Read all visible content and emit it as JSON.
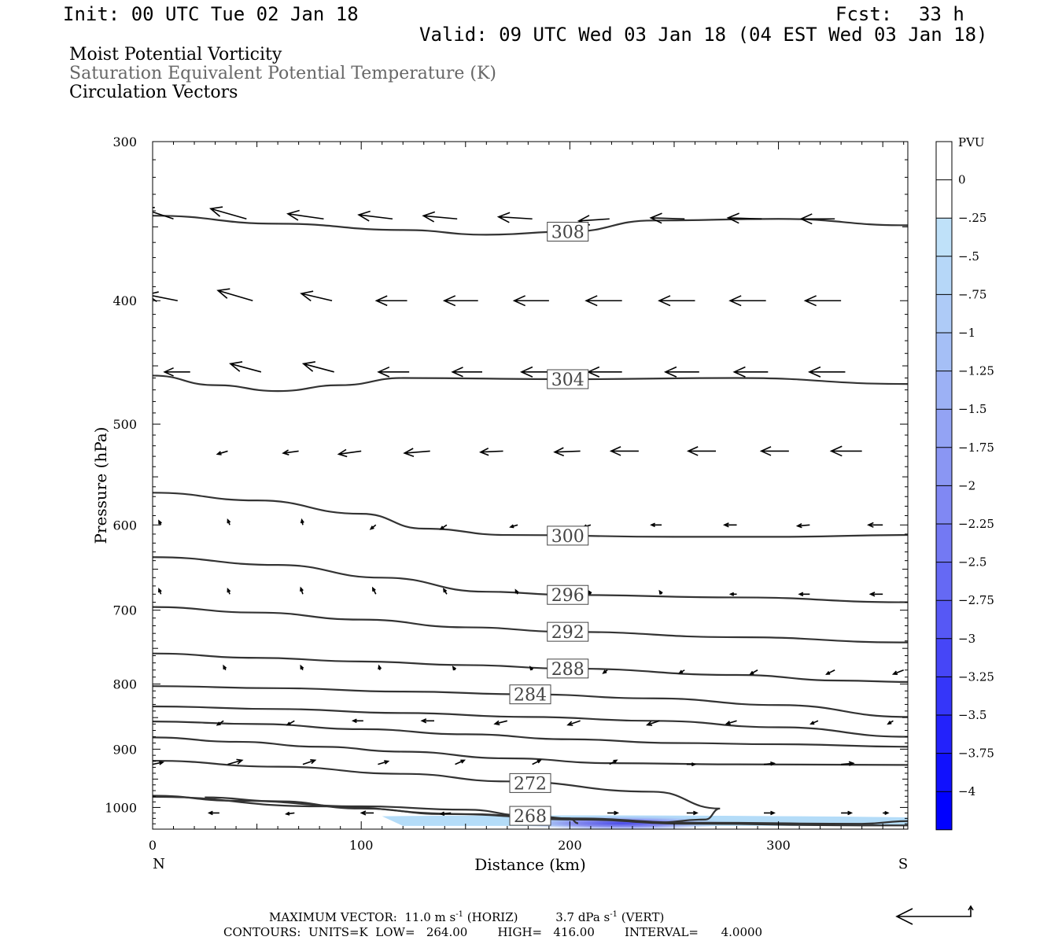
{
  "header": {
    "init": "Init: 00 UTC Tue 02 Jan 18",
    "fcst_label": "Fcst:",
    "fcst_value": "33 h",
    "valid": "Valid: 09 UTC Wed 03 Jan 18 (04 EST Wed 03 Jan 18)"
  },
  "titles": [
    "Moist Potential Vorticity",
    "Saturation Equivalent Potential Temperature (K)",
    "Circulation Vectors"
  ],
  "colors": {
    "contour": "#333333",
    "title2": "#666666",
    "pv_light": "#b4dcf8",
    "pv_dark": "#0000ff"
  },
  "chart_data": {
    "type": "cross-section",
    "xlabel": "Distance (km)",
    "ylabel": "Pressure (hPa)",
    "x_range": [
      0,
      362
    ],
    "y_range_hPa": [
      300,
      1040
    ],
    "y_log_scale": true,
    "x_ticks": [
      0,
      100,
      200,
      300
    ],
    "y_ticks": [
      300,
      400,
      500,
      600,
      700,
      800,
      900,
      1000
    ],
    "end_labels": {
      "left": "N",
      "right": "S"
    },
    "contours_theta_es": [
      {
        "label": "308",
        "label_x": 199,
        "points": [
          [
            0,
            343
          ],
          [
            60,
            348
          ],
          [
            120,
            352
          ],
          [
            160,
            355
          ],
          [
            200,
            353
          ],
          [
            240,
            346
          ],
          [
            300,
            345
          ],
          [
            362,
            349
          ]
        ]
      },
      {
        "label": "304",
        "label_x": 199,
        "points": [
          [
            0,
            458
          ],
          [
            30,
            466
          ],
          [
            60,
            471
          ],
          [
            90,
            466
          ],
          [
            120,
            460
          ],
          [
            200,
            461
          ],
          [
            280,
            460
          ],
          [
            362,
            465
          ]
        ]
      },
      {
        "label": "300",
        "label_x": 199,
        "points": [
          [
            0,
            566
          ],
          [
            50,
            574
          ],
          [
            100,
            588
          ],
          [
            130,
            604
          ],
          [
            170,
            611
          ],
          [
            250,
            613
          ],
          [
            300,
            613
          ],
          [
            362,
            611
          ]
        ]
      },
      {
        "label": "296",
        "label_x": 199,
        "points": [
          [
            0,
            636
          ],
          [
            60,
            645
          ],
          [
            110,
            660
          ],
          [
            160,
            677
          ],
          [
            200,
            681
          ],
          [
            280,
            684
          ],
          [
            362,
            690
          ]
        ]
      },
      {
        "label": "292",
        "label_x": 199,
        "points": [
          [
            0,
            696
          ],
          [
            50,
            703
          ],
          [
            100,
            712
          ],
          [
            150,
            722
          ],
          [
            200,
            728
          ],
          [
            280,
            735
          ],
          [
            362,
            742
          ]
        ]
      },
      {
        "label": "288",
        "label_x": 199,
        "points": [
          [
            0,
            757
          ],
          [
            50,
            763
          ],
          [
            100,
            768
          ],
          [
            150,
            773
          ],
          [
            200,
            778
          ],
          [
            280,
            787
          ],
          [
            330,
            795
          ],
          [
            362,
            797
          ]
        ]
      },
      {
        "label": "284",
        "label_x": 181,
        "points": [
          [
            0,
            803
          ],
          [
            60,
            806
          ],
          [
            120,
            811
          ],
          [
            180,
            815
          ],
          [
            240,
            821
          ],
          [
            300,
            831
          ],
          [
            362,
            849
          ]
        ]
      },
      {
        "label": "",
        "label_x": 0,
        "points": [
          [
            0,
            833
          ],
          [
            60,
            837
          ],
          [
            120,
            843
          ],
          [
            180,
            849
          ],
          [
            240,
            855
          ],
          [
            300,
            865
          ],
          [
            362,
            880
          ]
        ]
      },
      {
        "label": "",
        "label_x": 0,
        "points": [
          [
            0,
            856
          ],
          [
            50,
            860
          ],
          [
            100,
            868
          ],
          [
            150,
            876
          ],
          [
            200,
            884
          ],
          [
            250,
            890
          ],
          [
            300,
            892
          ],
          [
            362,
            896
          ]
        ]
      },
      {
        "label": "",
        "label_x": 0,
        "points": [
          [
            0,
            881
          ],
          [
            40,
            888
          ],
          [
            80,
            896
          ],
          [
            120,
            904
          ],
          [
            170,
            915
          ],
          [
            220,
            923
          ],
          [
            280,
            925
          ],
          [
            362,
            926
          ]
        ]
      },
      {
        "label": "272",
        "label_x": 181,
        "points": [
          [
            0,
            919
          ],
          [
            60,
            929
          ],
          [
            120,
            941
          ],
          [
            170,
            954
          ],
          [
            240,
            972
          ],
          [
            272,
            1002
          ],
          [
            265,
            1022
          ],
          [
            240,
            1028
          ]
        ]
      },
      {
        "label": "268",
        "label_x": 181,
        "points": [
          [
            0,
            979
          ],
          [
            40,
            988
          ],
          [
            100,
            998
          ],
          [
            150,
            1004
          ],
          [
            180,
            1015
          ],
          [
            200,
            1020
          ],
          [
            204,
            1029
          ]
        ]
      },
      {
        "label": "",
        "label_x": 0,
        "points": [
          [
            0,
            981
          ],
          [
            80,
            998
          ],
          [
            150,
            1012
          ],
          [
            200,
            1022
          ],
          [
            260,
            1030
          ],
          [
            340,
            1033
          ],
          [
            362,
            1033
          ]
        ]
      },
      {
        "label": "",
        "label_x": 0,
        "points": [
          [
            25,
            982
          ],
          [
            60,
            989
          ],
          [
            100,
            1002
          ],
          [
            140,
            1012
          ],
          [
            200,
            1020
          ],
          [
            260,
            1028
          ],
          [
            340,
            1030
          ],
          [
            362,
            1025
          ]
        ]
      }
    ],
    "vectors": [
      {
        "p": 345,
        "xs": [
          10,
          45,
          82,
          115,
          146,
          182,
          219,
          255,
          292,
          327
        ],
        "u": [
          [
            -30,
            -10
          ],
          [
            -35,
            -10
          ],
          [
            -35,
            -5
          ],
          [
            -33,
            -4
          ],
          [
            -33,
            -3
          ],
          [
            -33,
            -2
          ],
          [
            -30,
            2
          ],
          [
            -33,
            -1
          ],
          [
            -33,
            -1
          ],
          [
            -33,
            0
          ]
        ]
      },
      {
        "p": 400,
        "xs": [
          12,
          48,
          86,
          122,
          156,
          190,
          225,
          260,
          294,
          330
        ],
        "u": [
          [
            -30,
            -6
          ],
          [
            -34,
            -10
          ],
          [
            -30,
            -7
          ],
          [
            -30,
            0
          ],
          [
            -33,
            0
          ],
          [
            -34,
            0
          ],
          [
            -35,
            0
          ],
          [
            -35,
            0
          ],
          [
            -35,
            0
          ],
          [
            -35,
            0
          ]
        ]
      },
      {
        "p": 455,
        "xs": [
          18,
          52,
          87,
          123,
          158,
          193,
          225,
          262,
          295,
          332
        ],
        "u": [
          [
            -25,
            0
          ],
          [
            -30,
            -8
          ],
          [
            -30,
            -8
          ],
          [
            -30,
            0
          ],
          [
            -29,
            0
          ],
          [
            -33,
            0
          ],
          [
            -33,
            0
          ],
          [
            -33,
            0
          ],
          [
            -33,
            0
          ],
          [
            -35,
            0
          ]
        ]
      },
      {
        "p": 525,
        "xs": [
          36,
          70,
          100,
          133,
          168,
          205,
          233,
          270,
          305,
          340
        ],
        "u": [
          [
            -10,
            3
          ],
          [
            -15,
            2
          ],
          [
            -22,
            3
          ],
          [
            -25,
            2
          ],
          [
            -22,
            1
          ],
          [
            -25,
            1
          ],
          [
            -27,
            0
          ],
          [
            -27,
            0
          ],
          [
            -27,
            0
          ],
          [
            -30,
            0
          ]
        ]
      },
      {
        "p": 600,
        "xs": [
          4,
          37,
          72,
          107,
          141,
          175,
          210,
          244,
          280,
          315,
          350
        ],
        "u": [
          [
            -2,
            -4
          ],
          [
            -2,
            -5
          ],
          [
            -1,
            -5
          ],
          [
            -5,
            4
          ],
          [
            -6,
            4
          ],
          [
            -7,
            2
          ],
          [
            -7,
            2
          ],
          [
            -10,
            0
          ],
          [
            -12,
            0
          ],
          [
            -12,
            1
          ],
          [
            -14,
            0
          ]
        ]
      },
      {
        "p": 680,
        "xs": [
          4,
          37,
          72,
          107,
          141,
          175,
          210,
          244,
          280,
          315,
          350
        ],
        "u": [
          [
            -2,
            -5
          ],
          [
            -2,
            -5
          ],
          [
            -2,
            -6
          ],
          [
            -3,
            -6
          ],
          [
            -3,
            -5
          ],
          [
            -2,
            -4
          ],
          [
            -2,
            -3
          ],
          [
            -2,
            -3
          ],
          [
            -6,
            0
          ],
          [
            -10,
            0
          ],
          [
            -12,
            0
          ]
        ]
      },
      {
        "p": 780,
        "xs": [
          35,
          72,
          109,
          145,
          182,
          218,
          255,
          290,
          327,
          360
        ],
        "u": [
          [
            -2,
            -4
          ],
          [
            -2,
            -4
          ],
          [
            -1,
            -4
          ],
          [
            -2,
            -3
          ],
          [
            -2,
            -3
          ],
          [
            -4,
            3
          ],
          [
            -5,
            3
          ],
          [
            -7,
            4
          ],
          [
            -8,
            4
          ],
          [
            -10,
            4
          ]
        ]
      },
      {
        "p": 855,
        "xs": [
          34,
          68,
          101,
          135,
          170,
          205,
          243,
          280,
          319,
          355
        ],
        "u": [
          [
            -6,
            4
          ],
          [
            -7,
            4
          ],
          [
            -10,
            0
          ],
          [
            -12,
            0
          ],
          [
            -12,
            3
          ],
          [
            -12,
            4
          ],
          [
            -12,
            4
          ],
          [
            -10,
            3
          ],
          [
            -7,
            3
          ],
          [
            -5,
            3
          ]
        ]
      },
      {
        "p": 925,
        "xs": [
          0,
          36,
          72,
          108,
          145,
          182,
          219,
          256,
          293,
          330
        ],
        "u": [
          [
            10,
            -2
          ],
          [
            14,
            -4
          ],
          [
            12,
            -4
          ],
          [
            10,
            -3
          ],
          [
            9,
            -4
          ],
          [
            8,
            -4
          ],
          [
            7,
            -4
          ],
          [
            8,
            0
          ],
          [
            10,
            -1
          ],
          [
            12,
            -1
          ]
        ]
      },
      {
        "p": 1010,
        "xs": [
          32,
          68,
          106,
          143,
          180,
          218,
          256,
          293,
          330,
          350
        ],
        "u": [
          [
            -10,
            0
          ],
          [
            -8,
            1
          ],
          [
            -12,
            0
          ],
          [
            -10,
            1
          ],
          [
            10,
            0
          ],
          [
            10,
            0
          ],
          [
            10,
            0
          ],
          [
            10,
            0
          ],
          [
            10,
            0
          ],
          [
            5,
            0
          ]
        ]
      }
    ],
    "pv_shading": {
      "units": "PVU",
      "light_area": {
        "x_range": [
          110,
          362
        ],
        "p_range": [
          1016,
          1034
        ]
      },
      "dark_core": {
        "x_center": 225,
        "p_center": 1026,
        "x_halfwidth": 55
      }
    },
    "colorbar": {
      "label": "PVU",
      "ticks": [
        "0",
        "-.25",
        "-.5",
        "-.75",
        "-1",
        "-1.25",
        "-1.5",
        "-1.75",
        "-2",
        "-2.25",
        "-2.5",
        "-2.75",
        "-3",
        "-3.25",
        "-3.5",
        "-3.75",
        "-4"
      ],
      "colors": [
        "#ffffff",
        "#ffffff",
        "#bfe1f9",
        "#b6d7f8",
        "#aecbf7",
        "#a5bff6",
        "#9cb1f5",
        "#93a3f4",
        "#8a96f3",
        "#8088f3",
        "#7379f3",
        "#6569f4",
        "#5658f5",
        "#4646f7",
        "#3536f9",
        "#2322fb",
        "#1111fd",
        "#0000ff"
      ]
    }
  },
  "footer": {
    "max_vector_label": "MAXIMUM VECTOR:",
    "horiz": "11.0 m s",
    "horiz_unit": "(HORIZ)",
    "vert": "3.7 dPa s",
    "vert_unit": "(VERT)",
    "exponent": "-1",
    "contours": "CONTOURS:  UNITS=K  LOW=   264.00        HIGH=   416.00        INTERVAL=      4.0000"
  }
}
